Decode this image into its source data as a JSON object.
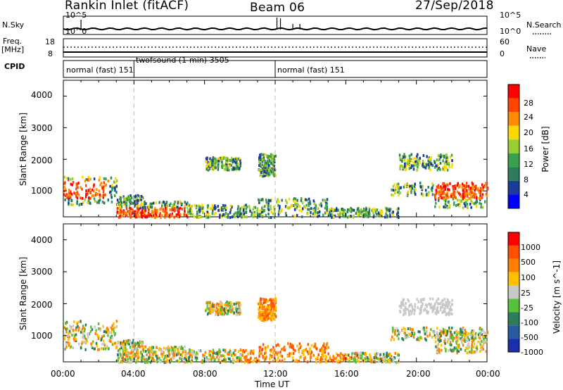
{
  "header": {
    "station": "Rankin Inlet (fitACF)",
    "beam": "Beam 06",
    "date": "27/Sep/2018"
  },
  "top_panels": {
    "nsky_label": "N.Sky",
    "nsky_ticks": [
      "10^5",
      "10^0"
    ],
    "nsearch_label": "N.Search",
    "nsearch_ticks": [
      "10^5",
      "10^0"
    ],
    "freq_label_1": "Freq.",
    "freq_label_2": "[MHz]",
    "freq_ticks": [
      "18",
      "8"
    ],
    "nave_label": "Nave",
    "nave_ticks": [
      "60",
      "0"
    ],
    "cpid_label": "CPID",
    "modes": [
      "normal (fast) 151",
      "twofsound (1-min) 3505",
      "normal (fast) 151"
    ]
  },
  "colors": {
    "power_scale": [
      "#0000ff",
      "#1a3a9c",
      "#2e7d5a",
      "#3aa04a",
      "#9acd32",
      "#ffd700",
      "#ff8c00",
      "#ff4500",
      "#ff0000"
    ],
    "velocity_scale": [
      "#1a2fb0",
      "#2a5aa0",
      "#2e7d5a",
      "#55c23a",
      "#c8c8c8",
      "#ffc000",
      "#ff8000",
      "#ff5000",
      "#ff0000"
    ]
  },
  "chart_data": [
    {
      "type": "heatmap",
      "panel": "power",
      "ylabel": "Slant Range [km]",
      "yticks": [
        "4000",
        "3000",
        "2000",
        "1000"
      ],
      "ylim": [
        180,
        4500
      ],
      "xticks": [
        "00:00",
        "04:00",
        "08:00",
        "12:00",
        "16:00",
        "20:00",
        "00:00"
      ],
      "colorbar_label": "Power [dB]",
      "colorbar_ticks": [
        "28",
        "24",
        "20",
        "16",
        "12",
        "8",
        "4"
      ]
    },
    {
      "type": "heatmap",
      "panel": "velocity",
      "ylabel": "Slant Range [km]",
      "yticks": [
        "4000",
        "3000",
        "2000",
        "1000"
      ],
      "ylim": [
        180,
        4500
      ],
      "xlabel": "Time UT",
      "xticks": [
        "00:00",
        "04:00",
        "08:00",
        "12:00",
        "16:00",
        "20:00",
        "00:00"
      ],
      "colorbar_label": "Velocity [m s^-1]",
      "colorbar_ticks": [
        "1000",
        "500",
        "100",
        "25",
        "-25",
        "-100",
        "-500",
        "-1000"
      ]
    }
  ]
}
